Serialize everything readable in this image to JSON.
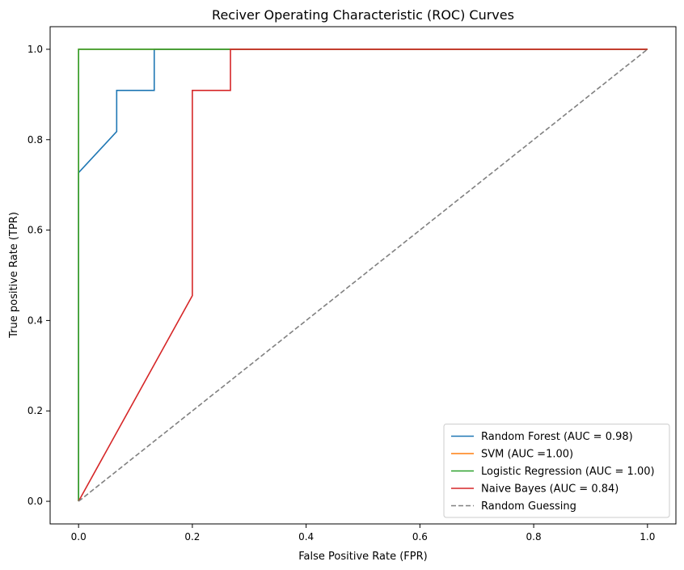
{
  "chart_data": {
    "type": "line",
    "title": "Reciver Operating Characteristic (ROC) Curves",
    "xlabel": "False Positive Rate (FPR)",
    "ylabel": "True positive Rate (TPR)",
    "xlim": [
      -0.05,
      1.05
    ],
    "ylim": [
      -0.05,
      1.05
    ],
    "xticks": [
      0.0,
      0.2,
      0.4,
      0.6,
      0.8,
      1.0
    ],
    "yticks": [
      0.0,
      0.2,
      0.4,
      0.6,
      0.8,
      1.0
    ],
    "xtick_labels": [
      "0.0",
      "0.2",
      "0.4",
      "0.6",
      "0.8",
      "1.0"
    ],
    "ytick_labels": [
      "0.0",
      "0.2",
      "0.4",
      "0.6",
      "0.8",
      "1.0"
    ],
    "grid": false,
    "legend_position": "lower-right",
    "series": [
      {
        "name": "Random Forest (AUC = 0.98)",
        "color": "#1f77b4",
        "dash": "solid",
        "x": [
          0.0,
          0.0,
          0.0,
          0.067,
          0.067,
          0.133,
          0.133,
          1.0
        ],
        "y": [
          0.0,
          0.0,
          0.727,
          0.818,
          0.909,
          0.909,
          1.0,
          1.0
        ]
      },
      {
        "name": "SVM (AUC =1.00)",
        "color": "#ff7f0e",
        "dash": "solid",
        "x": [
          0.0,
          0.0,
          0.0,
          1.0
        ],
        "y": [
          0.0,
          0.0,
          1.0,
          1.0
        ]
      },
      {
        "name": "Logistic Regression (AUC = 1.00)",
        "color": "#2ca02c",
        "dash": "solid",
        "x": [
          0.0,
          0.0,
          0.0,
          1.0
        ],
        "y": [
          0.0,
          0.0,
          1.0,
          1.0
        ]
      },
      {
        "name": "Naive Bayes (AUC = 0.84)",
        "color": "#d62728",
        "dash": "solid",
        "x": [
          0.0,
          0.2,
          0.2,
          0.267,
          0.267,
          1.0
        ],
        "y": [
          0.0,
          0.455,
          0.909,
          0.909,
          1.0,
          1.0
        ]
      },
      {
        "name": "Random Guessing",
        "color": "#808080",
        "dash": "dashed",
        "x": [
          0.0,
          1.0
        ],
        "y": [
          0.0,
          1.0
        ]
      }
    ]
  }
}
